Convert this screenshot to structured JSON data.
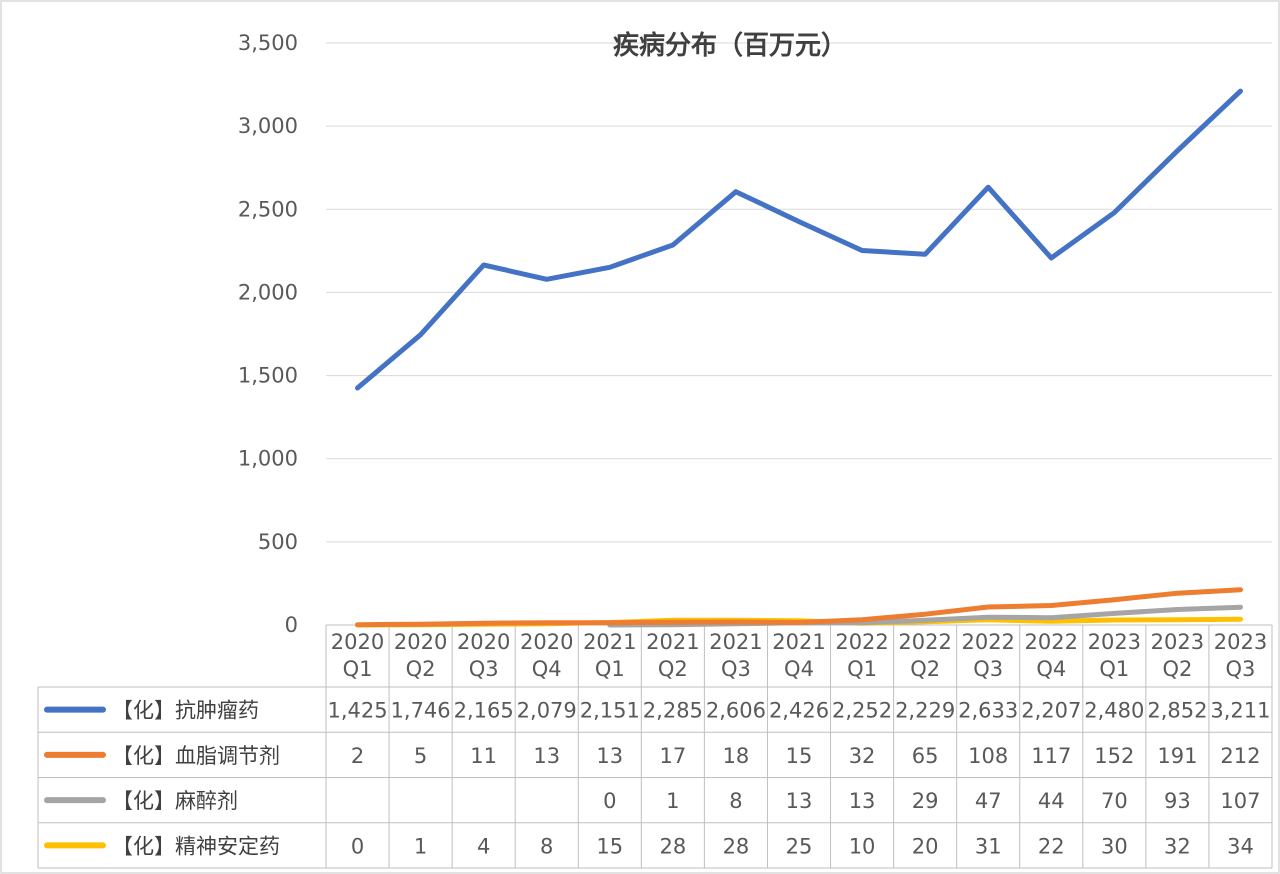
{
  "chart_data": {
    "type": "line",
    "title": "疾病分布（百万元）",
    "categories": [
      [
        "2020",
        "Q1"
      ],
      [
        "2020",
        "Q2"
      ],
      [
        "2020",
        "Q3"
      ],
      [
        "2020",
        "Q4"
      ],
      [
        "2021",
        "Q1"
      ],
      [
        "2021",
        "Q2"
      ],
      [
        "2021",
        "Q3"
      ],
      [
        "2021",
        "Q4"
      ],
      [
        "2022",
        "Q1"
      ],
      [
        "2022",
        "Q2"
      ],
      [
        "2022",
        "Q3"
      ],
      [
        "2022",
        "Q4"
      ],
      [
        "2023",
        "Q1"
      ],
      [
        "2023",
        "Q2"
      ],
      [
        "2023",
        "Q3"
      ]
    ],
    "yticks": [
      "0",
      "500",
      "1,000",
      "1,500",
      "2,000",
      "2,500",
      "3,000",
      "3,500"
    ],
    "ylim": [
      0,
      3500
    ],
    "grid": true,
    "legend": "data-table",
    "series": [
      {
        "name": "【化】抗肿瘤药",
        "color": "#4472c4",
        "values": [
          1425,
          1746,
          2165,
          2079,
          2151,
          2285,
          2606,
          2426,
          2252,
          2229,
          2633,
          2207,
          2480,
          2852,
          3211
        ],
        "labels": [
          "1,425",
          "1,746",
          "2,165",
          "2,079",
          "2,151",
          "2,285",
          "2,606",
          "2,426",
          "2,252",
          "2,229",
          "2,633",
          "2,207",
          "2,480",
          "2,852",
          "3,211"
        ]
      },
      {
        "name": "【化】血脂调节剂",
        "color": "#ed7d31",
        "values": [
          2,
          5,
          11,
          13,
          13,
          17,
          18,
          15,
          32,
          65,
          108,
          117,
          152,
          191,
          212
        ],
        "labels": [
          "2",
          "5",
          "11",
          "13",
          "13",
          "17",
          "18",
          "15",
          "32",
          "65",
          "108",
          "117",
          "152",
          "191",
          "212"
        ]
      },
      {
        "name": "【化】麻醉剂",
        "color": "#a5a5a5",
        "values": [
          null,
          null,
          null,
          null,
          0,
          1,
          8,
          13,
          13,
          29,
          47,
          44,
          70,
          93,
          107
        ],
        "labels": [
          "",
          "",
          "",
          "",
          "0",
          "1",
          "8",
          "13",
          "13",
          "29",
          "47",
          "44",
          "70",
          "93",
          "107"
        ]
      },
      {
        "name": "【化】精神安定药",
        "color": "#ffc000",
        "values": [
          0,
          1,
          4,
          8,
          15,
          28,
          28,
          25,
          10,
          20,
          31,
          22,
          30,
          32,
          34
        ],
        "labels": [
          "0",
          "1",
          "4",
          "8",
          "15",
          "28",
          "28",
          "25",
          "10",
          "20",
          "31",
          "22",
          "30",
          "32",
          "34"
        ]
      }
    ]
  }
}
